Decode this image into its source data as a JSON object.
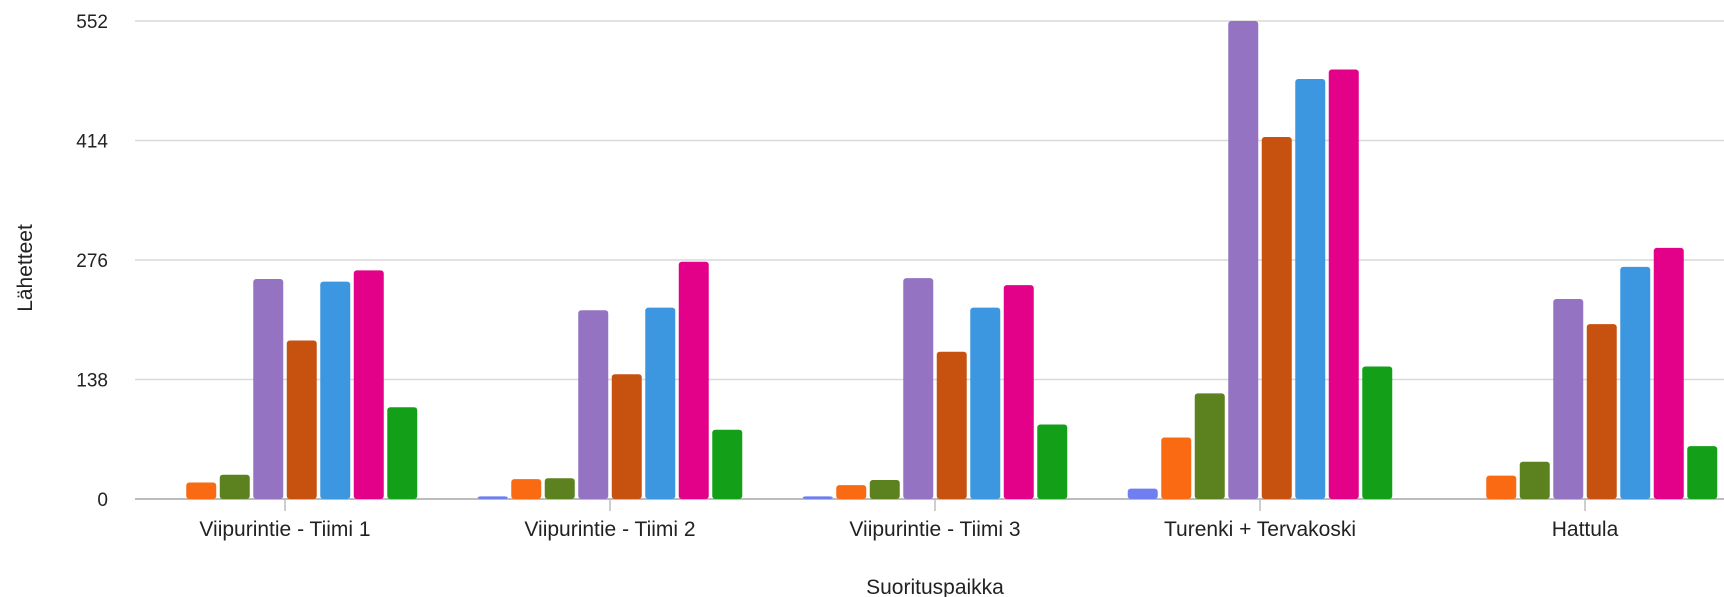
{
  "chart_data": {
    "type": "bar",
    "xlabel": "Suorituspaikka",
    "ylabel": "Lähetteet",
    "ylim": [
      0,
      552
    ],
    "yticks": [
      0,
      138,
      276,
      414,
      552
    ],
    "grid": true,
    "categories": [
      "Viipurintie - Tiimi 1",
      "Viipurintie - Tiimi 2",
      "Viipurintie - Tiimi 3",
      "Turenki + Tervakoski",
      "Hattula"
    ],
    "series": [
      {
        "color": "#6f7ff0",
        "values": [
          0,
          3,
          3,
          12,
          0
        ]
      },
      {
        "color": "#f96a12",
        "values": [
          19,
          23,
          16,
          71,
          27
        ]
      },
      {
        "color": "#5c8220",
        "values": [
          28,
          24,
          22,
          122,
          43
        ]
      },
      {
        "color": "#9474c2",
        "values": [
          254,
          218,
          255,
          552,
          231
        ]
      },
      {
        "color": "#c75210",
        "values": [
          183,
          144,
          170,
          418,
          202
        ]
      },
      {
        "color": "#3c97e0",
        "values": [
          251,
          221,
          221,
          485,
          268
        ]
      },
      {
        "color": "#e3018a",
        "values": [
          264,
          274,
          247,
          496,
          290
        ]
      },
      {
        "color": "#13a018",
        "values": [
          106,
          80,
          86,
          153,
          61
        ]
      }
    ]
  }
}
